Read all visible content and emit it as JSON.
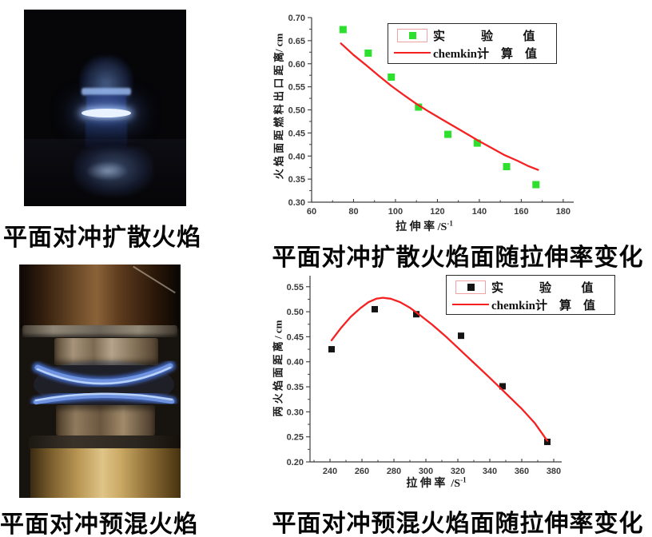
{
  "page": {
    "background": "#ffffff"
  },
  "photos": {
    "diffusion": {
      "caption": "平面对冲扩散火焰"
    },
    "premixed": {
      "caption": "平面对冲预混火焰"
    }
  },
  "chart_data": [
    {
      "type": "scatter",
      "caption": "平面对冲扩散火焰面随拉伸率变化",
      "xlabel": "拉 伸 率 /S",
      "xlabel_superscript": "-1",
      "ylabel": "火 焰 面 距 燃 料 出 口 距 离/ cm",
      "xlim": [
        60,
        185
      ],
      "ylim": [
        0.3,
        0.7
      ],
      "xticks": [
        60,
        80,
        100,
        120,
        140,
        160,
        180
      ],
      "xtick_minor_step": 10,
      "yticks": [
        0.3,
        0.35,
        0.4,
        0.45,
        0.5,
        0.55,
        0.6,
        0.65,
        0.7
      ],
      "ytick_minor_step": 0.025,
      "ytick_decimals": 2,
      "grid": false,
      "legend_position": "upper center inside",
      "legend": [
        {
          "type": "scatter",
          "label": "实            验          值",
          "color": "#2ee02e"
        },
        {
          "type": "line",
          "label": "chemkin计    算    值",
          "color": "#f62020"
        }
      ],
      "series": [
        {
          "name": "实验值",
          "type": "scatter",
          "marker": "square",
          "marker_size": 9,
          "color": "#2ee02e",
          "points": [
            [
              75,
              0.674
            ],
            [
              87,
              0.623
            ],
            [
              98,
              0.571
            ],
            [
              111,
              0.506
            ],
            [
              125,
              0.447
            ],
            [
              139,
              0.428
            ],
            [
              153,
              0.377
            ],
            [
              167,
              0.338
            ]
          ]
        },
        {
          "name": "chemkin计算值",
          "type": "line",
          "color": "#f62020",
          "points": [
            [
              74,
              0.644
            ],
            [
              80,
              0.619
            ],
            [
              86,
              0.597
            ],
            [
              92,
              0.574
            ],
            [
              98,
              0.552
            ],
            [
              104,
              0.532
            ],
            [
              110,
              0.513
            ],
            [
              116,
              0.496
            ],
            [
              122,
              0.48
            ],
            [
              128,
              0.464
            ],
            [
              134,
              0.448
            ],
            [
              140,
              0.432
            ],
            [
              146,
              0.417
            ],
            [
              152,
              0.402
            ],
            [
              158,
              0.39
            ],
            [
              163,
              0.379
            ],
            [
              168,
              0.37
            ]
          ]
        }
      ]
    },
    {
      "type": "scatter",
      "caption": "平面对冲预混火焰面随拉伸率变化",
      "xlabel": "拉 伸 率  /S",
      "xlabel_superscript": "-1",
      "ylabel": "两 火 焰 面 距 离 / cm",
      "xlim": [
        227.5,
        385
      ],
      "ylim": [
        0.2,
        0.572
      ],
      "xticks": [
        240,
        260,
        280,
        300,
        320,
        340,
        360,
        380
      ],
      "xtick_minor_step": 10,
      "yticks": [
        0.2,
        0.25,
        0.3,
        0.35,
        0.4,
        0.45,
        0.5,
        0.55
      ],
      "ytick_minor_step": 0.025,
      "ytick_decimals": 2,
      "grid": false,
      "legend_position": "upper right inside",
      "legend": [
        {
          "type": "scatter",
          "label": "实            验          值",
          "color": "#141414"
        },
        {
          "type": "line",
          "label": "chemkin计    算    值",
          "color": "#f62020"
        }
      ],
      "series": [
        {
          "name": "实验值",
          "type": "scatter",
          "marker": "square",
          "marker_size": 8,
          "color": "#141414",
          "points": [
            [
              241,
              0.425
            ],
            [
              268,
              0.505
            ],
            [
              294,
              0.495
            ],
            [
              322,
              0.452
            ],
            [
              348,
              0.351
            ],
            [
              376,
              0.24
            ]
          ]
        },
        {
          "name": "chemkin计算值",
          "type": "line",
          "color": "#f62020",
          "points": [
            [
              241,
              0.443
            ],
            [
              247,
              0.468
            ],
            [
              253,
              0.49
            ],
            [
              259,
              0.507
            ],
            [
              264,
              0.519
            ],
            [
              269,
              0.526
            ],
            [
              273,
              0.528
            ],
            [
              278,
              0.526
            ],
            [
              284,
              0.519
            ],
            [
              290,
              0.508
            ],
            [
              296,
              0.494
            ],
            [
              304,
              0.474
            ],
            [
              312,
              0.452
            ],
            [
              320,
              0.428
            ],
            [
              330,
              0.398
            ],
            [
              340,
              0.368
            ],
            [
              350,
              0.337
            ],
            [
              360,
              0.306
            ],
            [
              368,
              0.278
            ],
            [
              376,
              0.242
            ]
          ]
        }
      ]
    }
  ]
}
